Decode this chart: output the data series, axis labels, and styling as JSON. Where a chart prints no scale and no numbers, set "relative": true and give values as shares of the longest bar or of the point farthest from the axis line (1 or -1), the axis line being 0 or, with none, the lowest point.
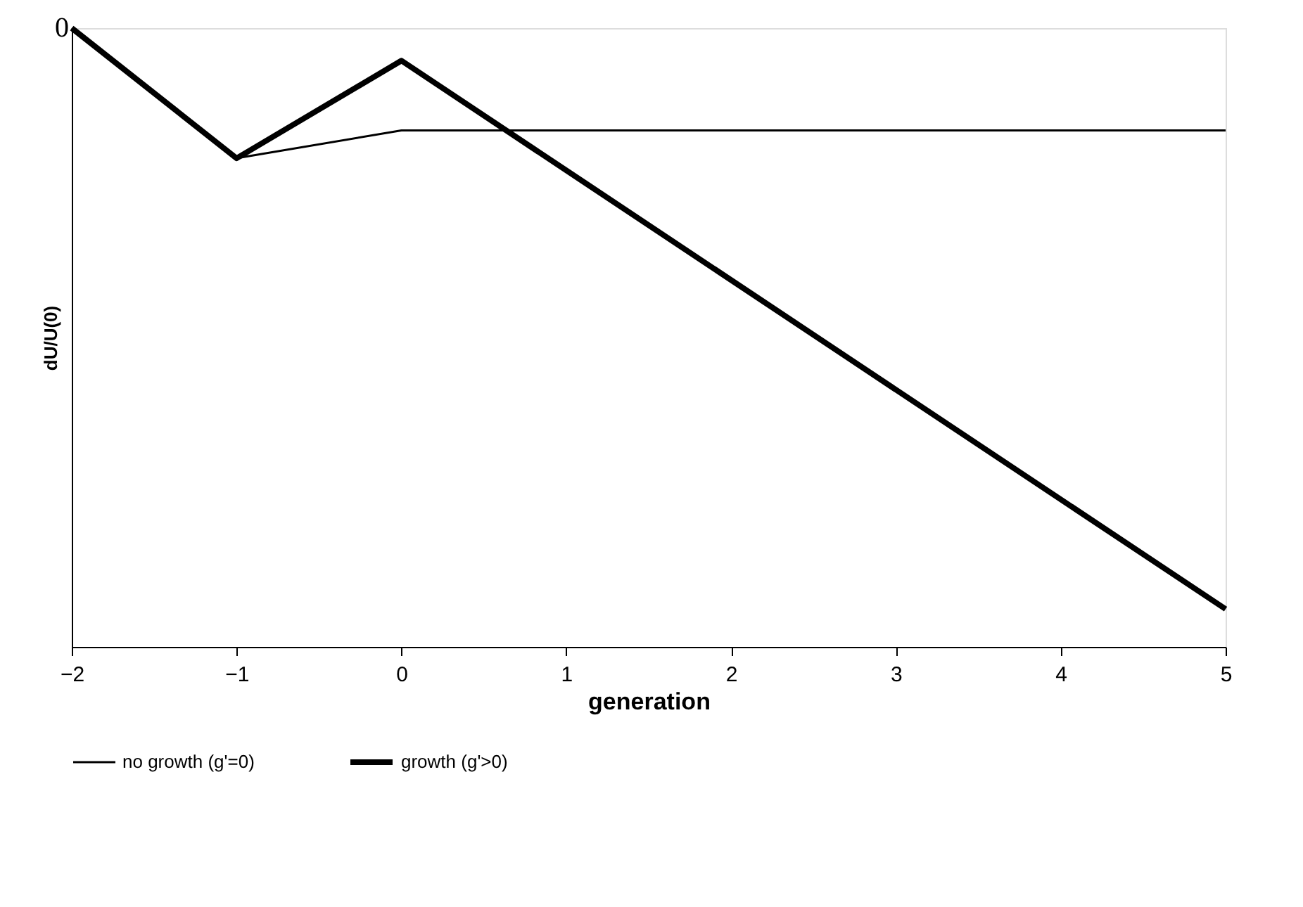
{
  "chart_data": {
    "type": "line",
    "relative": true,
    "xlabel": "generation",
    "ylabel": "dU/U(0)",
    "x": [
      -2,
      -1,
      0,
      5
    ],
    "xlim": [
      -2,
      5
    ],
    "xticks": [
      -2,
      -1,
      0,
      1,
      2,
      3,
      4,
      5
    ],
    "series": [
      {
        "name": "no growth (g'=0)",
        "color": "#000000",
        "values": [
          0,
          -0.224,
          -0.176,
          -0.176
        ]
      },
      {
        "name": "growth (g'>0)",
        "color": "#000000",
        "values": [
          0,
          -0.224,
          -0.056,
          -1
        ]
      }
    ],
    "annotations": [
      {
        "text": "0",
        "x": -2,
        "y": 0
      }
    ],
    "legend": "bottom",
    "marker": "none",
    "line_style": "solid",
    "grid": false
  }
}
